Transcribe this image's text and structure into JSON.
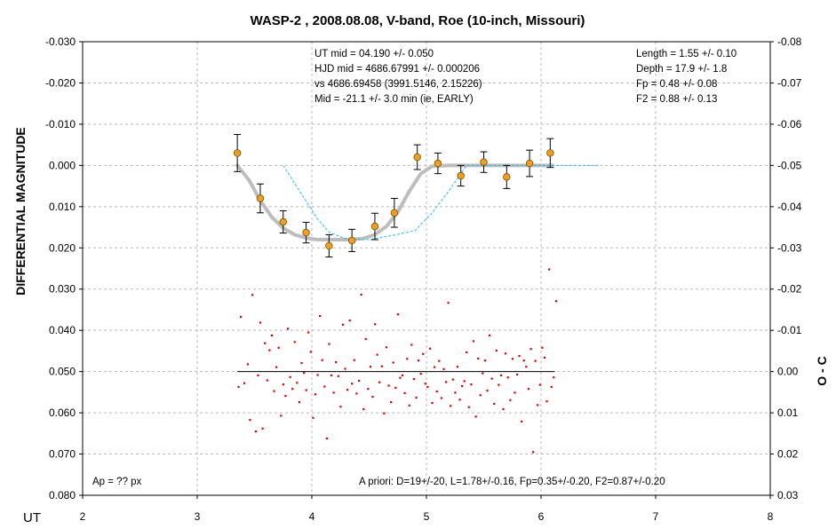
{
  "chart_data": {
    "type": "scatter",
    "title": "WASP-2 , 2008.08.08, V-band, Roe (10-inch, Missouri)",
    "xlabel": "UT",
    "ylabel": "DIFFERENTIAL MAGNITUDE",
    "y2label": "O - C",
    "xlim": [
      2,
      8
    ],
    "ylim": [
      -0.03,
      0.08
    ],
    "y_inverted": true,
    "y2lim": [
      -0.08,
      0.03
    ],
    "grid": true,
    "x_ticks": [
      "2",
      "3",
      "4",
      "5",
      "6",
      "7",
      "8"
    ],
    "y_ticks": [
      "-0.030",
      "-0.020",
      "-0.010",
      "0.000",
      "0.010",
      "0.020",
      "0.030",
      "0.040",
      "0.050",
      "0.060",
      "0.070",
      "0.080"
    ],
    "y2_ticks": [
      "-0.08",
      "-0.07",
      "-0.06",
      "-0.05",
      "-0.04",
      "-0.03",
      "-0.02",
      "-0.01",
      "0.00",
      "0.01",
      "0.02",
      "0.03"
    ],
    "annotations_left": [
      "UT mid = 04.190 +/- 0.050",
      "HJD mid = 4686.67991 +/- 0.000206",
      "vs 4686.69458  (3991.5146, 2.15226)",
      "Mid = -21.1 +/- 3.0 min (ie, EARLY)"
    ],
    "annotations_right": [
      "Length = 1.55 +/- 0.10",
      "Depth = 17.9 +/- 1.8",
      "Fp = 0.48 +/- 0.08",
      "F2 = 0.88 +/- 0.13"
    ],
    "footer_left": "Ap = ?? px",
    "footer_right": "A priori:  D=19+/-20, L=1.78+/-0.16, Fp=0.35+/-0.20, F2=0.87+/-0.20",
    "colors": {
      "binned_points": "#f0a020",
      "fit_curve": "#bdbdbd",
      "apriori_curve": "#22bbee",
      "residuals": "#dd0000",
      "zero_line": "#000000"
    },
    "binned": {
      "x": [
        3.35,
        3.55,
        3.75,
        3.95,
        4.15,
        4.35,
        4.55,
        4.72,
        4.92,
        5.1,
        5.3,
        5.5,
        5.7,
        5.9,
        6.08
      ],
      "y": [
        -0.003,
        0.008,
        0.0137,
        0.0163,
        0.0195,
        0.0182,
        0.0148,
        0.0115,
        -0.002,
        -0.0005,
        0.0025,
        -0.0008,
        0.0028,
        -0.0005,
        -0.003
      ],
      "err": [
        0.0045,
        0.0035,
        0.0027,
        0.0025,
        0.0027,
        0.0027,
        0.0032,
        0.0035,
        0.003,
        0.0025,
        0.0025,
        0.0025,
        0.0028,
        0.0032,
        0.0035
      ]
    },
    "fit_model": {
      "x": [
        3.35,
        3.45,
        3.55,
        3.65,
        3.75,
        3.85,
        3.95,
        4.05,
        4.15,
        4.25,
        4.35,
        4.45,
        4.55,
        4.65,
        4.75,
        4.85,
        4.95,
        5.05,
        5.2,
        5.5,
        5.8,
        6.1
      ],
      "y": [
        0.0,
        0.0035,
        0.0085,
        0.0125,
        0.0152,
        0.0168,
        0.0176,
        0.018,
        0.018,
        0.018,
        0.018,
        0.0177,
        0.0168,
        0.0148,
        0.0113,
        0.0063,
        0.002,
        0.0002,
        0.0,
        0.0,
        0.0,
        0.0
      ]
    },
    "apriori_model": {
      "x": [
        3.75,
        3.9,
        4.05,
        4.15,
        4.3,
        4.5,
        4.7,
        4.9,
        5.05,
        5.2,
        5.35,
        6.5
      ],
      "y": [
        0.0,
        0.0065,
        0.013,
        0.0162,
        0.0178,
        0.018,
        0.017,
        0.0158,
        0.0115,
        0.006,
        0.0,
        0.0
      ]
    },
    "residual_zero": 0.05,
    "residual_line_x": [
      3.35,
      6.12
    ],
    "residuals": {
      "x": [
        3.36,
        3.38,
        3.41,
        3.44,
        3.46,
        3.48,
        3.51,
        3.53,
        3.55,
        3.57,
        3.59,
        3.61,
        3.63,
        3.65,
        3.67,
        3.69,
        3.71,
        3.73,
        3.75,
        3.77,
        3.79,
        3.81,
        3.83,
        3.85,
        3.87,
        3.89,
        3.91,
        3.93,
        3.95,
        3.97,
        3.99,
        4.01,
        4.03,
        4.05,
        4.07,
        4.09,
        4.11,
        4.13,
        4.15,
        4.17,
        4.19,
        4.21,
        4.23,
        4.25,
        4.27,
        4.29,
        4.31,
        4.33,
        4.35,
        4.37,
        4.39,
        4.41,
        4.43,
        4.45,
        4.47,
        4.49,
        4.51,
        4.53,
        4.55,
        4.57,
        4.59,
        4.61,
        4.63,
        4.65,
        4.67,
        4.69,
        4.71,
        4.73,
        4.75,
        4.77,
        4.79,
        4.81,
        4.83,
        4.85,
        4.87,
        4.89,
        4.91,
        4.93,
        4.95,
        4.97,
        4.99,
        5.01,
        5.03,
        5.05,
        5.07,
        5.09,
        5.11,
        5.13,
        5.15,
        5.17,
        5.19,
        5.21,
        5.23,
        5.25,
        5.27,
        5.29,
        5.31,
        5.33,
        5.35,
        5.37,
        5.39,
        5.41,
        5.43,
        5.45,
        5.47,
        5.49,
        5.51,
        5.53,
        5.55,
        5.57,
        5.59,
        5.61,
        5.63,
        5.65,
        5.67,
        5.69,
        5.71,
        5.73,
        5.75,
        5.77,
        5.79,
        5.81,
        5.83,
        5.85,
        5.87,
        5.89,
        5.91,
        5.93,
        5.95,
        5.97,
        5.99,
        6.01,
        6.03,
        6.05,
        6.07,
        6.09,
        6.11,
        6.13
      ],
      "y": [
        0.0037,
        -0.0133,
        0.0028,
        -0.0018,
        0.0117,
        -0.0186,
        0.0145,
        0.0009,
        -0.0119,
        0.0138,
        -0.0069,
        0.0021,
        -0.0052,
        -0.0088,
        0.0047,
        -0.0011,
        -0.0058,
        0.0107,
        0.0031,
        0.0059,
        -0.0104,
        0.0013,
        0.0042,
        -0.0072,
        0.0027,
        0.0074,
        -0.0021,
        0.0003,
        0.0045,
        -0.0095,
        -0.0048,
        0.0112,
        0.0055,
        0.0008,
        -0.0135,
        -0.0028,
        0.0036,
        0.0162,
        -0.0067,
        0.0009,
        0.0051,
        -0.0023,
        0.0011,
        0.0085,
        -0.0114,
        -0.0007,
        0.0044,
        -0.0124,
        0.0029,
        -0.0028,
        0.0053,
        0.0022,
        -0.0187,
        0.0091,
        -0.0079,
        0.0042,
        -0.0012,
        0.0061,
        -0.0115,
        -0.0041,
        0.0026,
        -0.0013,
        0.0101,
        -0.0059,
        0.0034,
        0.0074,
        -0.0022,
        0.0039,
        -0.0139,
        0.0015,
        0.0009,
        0.0052,
        -0.0031,
        0.0082,
        -0.0065,
        0.0018,
        0.0063,
        -0.0027,
        0.0005,
        -0.0043,
        0.0029,
        0.0037,
        -0.0056,
        0.0076,
        -0.0011,
        0.0048,
        -0.0026,
        0.0064,
        -0.0006,
        0.0025,
        -0.0167,
        0.0083,
        0.0019,
        0.0051,
        -0.0012,
        0.0068,
        0.0035,
        0.0023,
        -0.0047,
        0.0086,
        0.0031,
        -0.0074,
        0.0109,
        -0.0032,
        0.0057,
        0.0004,
        -0.0027,
        0.0046,
        -0.0088,
        0.0017,
        0.0078,
        -0.0051,
        0.0032,
        0.0009,
        0.0091,
        -0.0044,
        0.0014,
        0.0069,
        -0.0031,
        0.0051,
        0.0007,
        -0.0038,
        0.0121,
        -0.0027,
        -0.0012,
        0.0042,
        -0.0055,
        0.0195,
        -0.0026,
        0.0081,
        0.0032,
        -0.0058,
        -0.0034,
        0.0072,
        -0.0248,
        0.0037,
        0.0014,
        -0.0171
      ]
    }
  }
}
